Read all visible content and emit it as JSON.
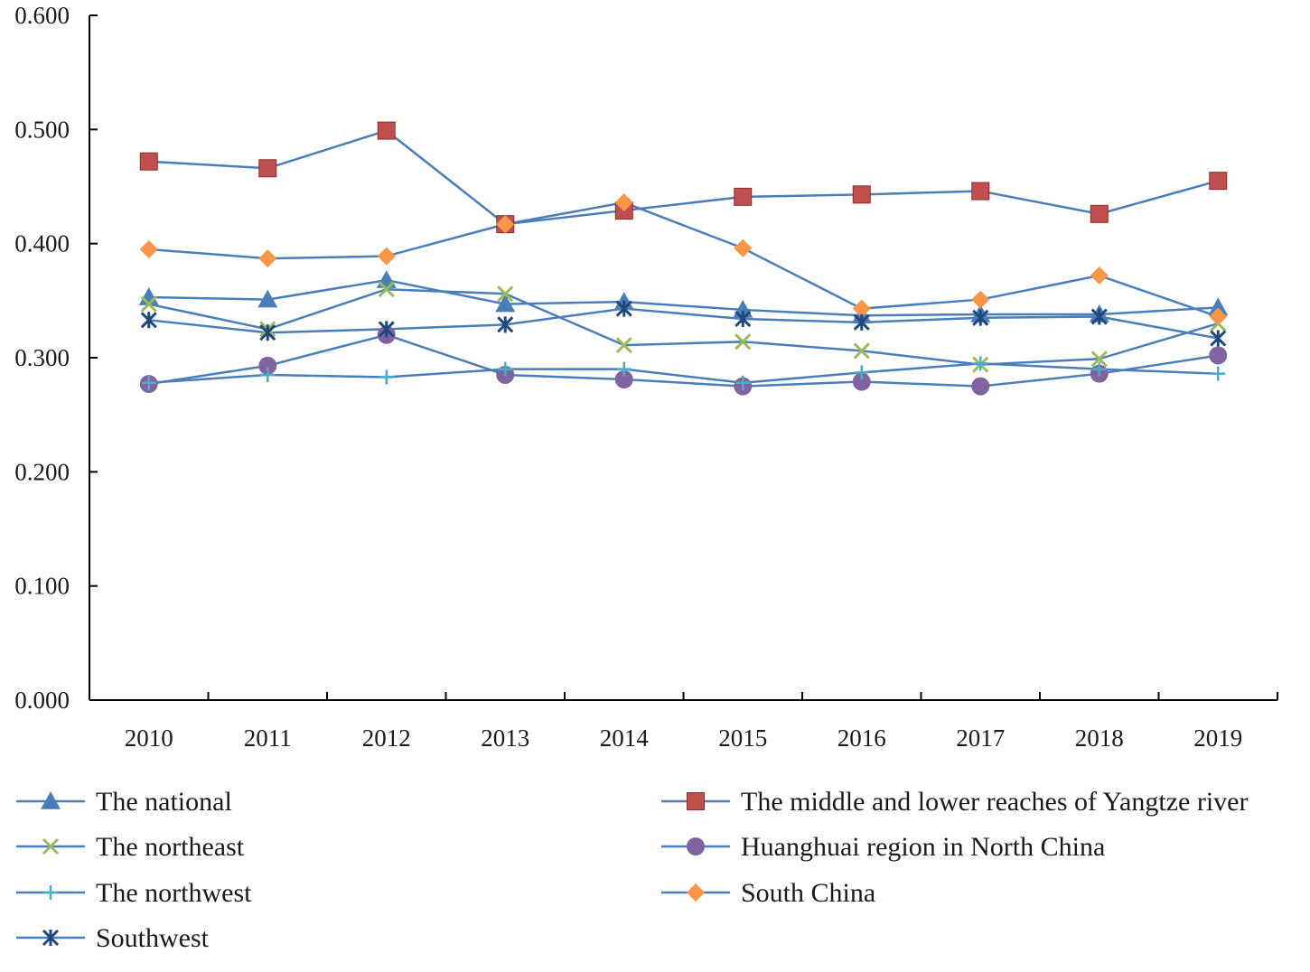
{
  "chart_data": {
    "type": "line",
    "title": "",
    "xlabel": "",
    "ylabel": "",
    "categories": [
      "2010",
      "2011",
      "2012",
      "2013",
      "2014",
      "2015",
      "2016",
      "2017",
      "2018",
      "2019"
    ],
    "ylim": [
      0,
      0.6
    ],
    "y_ticks": [
      "0.000",
      "0.100",
      "0.200",
      "0.300",
      "0.400",
      "0.500",
      "0.600"
    ],
    "y_tick_values": [
      0,
      0.1,
      0.2,
      0.3,
      0.4,
      0.5,
      0.6
    ],
    "grid": false,
    "legend_position": "bottom",
    "line_color": "#4a7ebb",
    "series": [
      {
        "name": "The national",
        "marker": "triangle",
        "color": "#4a7ebb",
        "values": [
          0.353,
          0.351,
          0.368,
          0.347,
          0.349,
          0.342,
          0.337,
          0.338,
          0.338,
          0.344
        ]
      },
      {
        "name": "The middle and lower reaches of Yangtze river",
        "marker": "square",
        "color": "#c0504d",
        "values": [
          0.472,
          0.466,
          0.499,
          0.417,
          0.429,
          0.441,
          0.443,
          0.446,
          0.426,
          0.455
        ]
      },
      {
        "name": "The northeast",
        "marker": "x",
        "color": "#9bbb59",
        "values": [
          0.347,
          0.325,
          0.36,
          0.356,
          0.311,
          0.314,
          0.306,
          0.294,
          0.299,
          0.33
        ]
      },
      {
        "name": "Huanghuai region in North China",
        "marker": "circle",
        "color": "#8064a2",
        "values": [
          0.277,
          0.293,
          0.32,
          0.285,
          0.281,
          0.275,
          0.279,
          0.275,
          0.286,
          0.302
        ]
      },
      {
        "name": "The northwest",
        "marker": "plus",
        "color": "#4bacc6",
        "values": [
          0.278,
          0.285,
          0.283,
          0.29,
          0.29,
          0.278,
          0.287,
          0.295,
          0.29,
          0.286
        ]
      },
      {
        "name": "South China",
        "marker": "diamond",
        "color": "#f79646",
        "values": [
          0.395,
          0.387,
          0.389,
          0.417,
          0.436,
          0.396,
          0.343,
          0.351,
          0.372,
          0.336
        ]
      },
      {
        "name": "Southwest",
        "marker": "asterisk",
        "color": "#1f497d",
        "values": [
          0.333,
          0.322,
          0.325,
          0.329,
          0.343,
          0.334,
          0.331,
          0.335,
          0.336,
          0.317
        ]
      }
    ],
    "legend_order": [
      0,
      1,
      2,
      3,
      4,
      5,
      6
    ]
  }
}
